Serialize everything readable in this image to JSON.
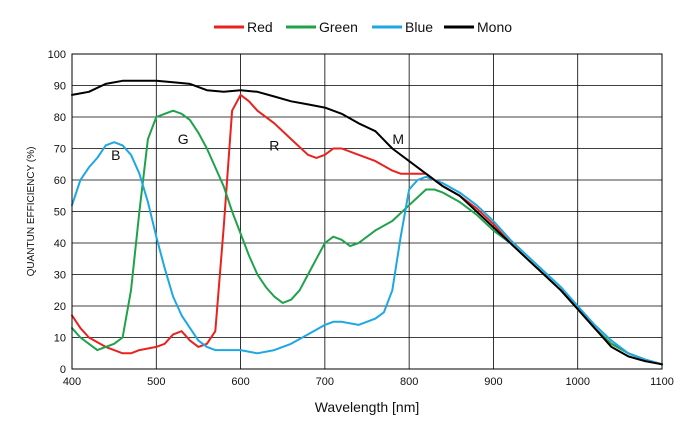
{
  "chart_data": {
    "type": "line",
    "xlabel": "Wavelength [nm]",
    "ylabel": "QUANTUN EFFICIENCY (%)",
    "xlim": [
      400,
      1100
    ],
    "ylim": [
      0,
      100
    ],
    "xticks": [
      400,
      500,
      600,
      700,
      800,
      900,
      1000,
      1100
    ],
    "yticks": [
      0,
      10,
      20,
      30,
      40,
      50,
      60,
      70,
      80,
      90,
      100
    ],
    "grid": true,
    "legend_position": "top-center",
    "series": [
      {
        "name": "Red",
        "color": "#e8231f",
        "points": [
          [
            400,
            17
          ],
          [
            410,
            13
          ],
          [
            420,
            10
          ],
          [
            440,
            7
          ],
          [
            460,
            5
          ],
          [
            470,
            5
          ],
          [
            480,
            6
          ],
          [
            500,
            7
          ],
          [
            510,
            8
          ],
          [
            520,
            11
          ],
          [
            530,
            12
          ],
          [
            540,
            9
          ],
          [
            550,
            7
          ],
          [
            560,
            8
          ],
          [
            570,
            12
          ],
          [
            580,
            45
          ],
          [
            590,
            82
          ],
          [
            600,
            87
          ],
          [
            610,
            85
          ],
          [
            620,
            82
          ],
          [
            640,
            78
          ],
          [
            660,
            73
          ],
          [
            680,
            68
          ],
          [
            690,
            67
          ],
          [
            700,
            68
          ],
          [
            710,
            70
          ],
          [
            720,
            70
          ],
          [
            740,
            68
          ],
          [
            760,
            66
          ],
          [
            780,
            63
          ],
          [
            790,
            62
          ],
          [
            800,
            62
          ],
          [
            820,
            62
          ],
          [
            840,
            58
          ],
          [
            860,
            55
          ],
          [
            880,
            51
          ],
          [
            900,
            46
          ],
          [
            920,
            40
          ],
          [
            940,
            35
          ],
          [
            960,
            30
          ],
          [
            980,
            25
          ],
          [
            1000,
            19
          ],
          [
            1020,
            13
          ],
          [
            1040,
            8
          ],
          [
            1060,
            5
          ],
          [
            1080,
            3
          ],
          [
            1100,
            1.5
          ]
        ]
      },
      {
        "name": "Green",
        "color": "#1fa24a",
        "points": [
          [
            400,
            13
          ],
          [
            410,
            10
          ],
          [
            420,
            8
          ],
          [
            430,
            6
          ],
          [
            440,
            7
          ],
          [
            450,
            8
          ],
          [
            460,
            10
          ],
          [
            470,
            25
          ],
          [
            480,
            50
          ],
          [
            490,
            73
          ],
          [
            500,
            80
          ],
          [
            510,
            81
          ],
          [
            520,
            82
          ],
          [
            530,
            81
          ],
          [
            540,
            79
          ],
          [
            550,
            75
          ],
          [
            560,
            70
          ],
          [
            570,
            64
          ],
          [
            580,
            58
          ],
          [
            590,
            50
          ],
          [
            600,
            43
          ],
          [
            610,
            36
          ],
          [
            620,
            30
          ],
          [
            630,
            26
          ],
          [
            640,
            23
          ],
          [
            650,
            21
          ],
          [
            660,
            22
          ],
          [
            670,
            25
          ],
          [
            680,
            30
          ],
          [
            690,
            35
          ],
          [
            700,
            40
          ],
          [
            710,
            42
          ],
          [
            720,
            41
          ],
          [
            730,
            39
          ],
          [
            740,
            40
          ],
          [
            760,
            44
          ],
          [
            780,
            47
          ],
          [
            800,
            52
          ],
          [
            820,
            57
          ],
          [
            830,
            57
          ],
          [
            840,
            56
          ],
          [
            860,
            53
          ],
          [
            880,
            49
          ],
          [
            900,
            44
          ],
          [
            920,
            40
          ],
          [
            940,
            35
          ],
          [
            960,
            30
          ],
          [
            980,
            25
          ],
          [
            1000,
            19
          ],
          [
            1020,
            13
          ],
          [
            1040,
            8
          ],
          [
            1060,
            5
          ],
          [
            1080,
            3
          ],
          [
            1100,
            1.5
          ]
        ]
      },
      {
        "name": "Blue",
        "color": "#1ea7e1",
        "points": [
          [
            400,
            52
          ],
          [
            410,
            60
          ],
          [
            420,
            64
          ],
          [
            430,
            67
          ],
          [
            440,
            71
          ],
          [
            450,
            72
          ],
          [
            460,
            71
          ],
          [
            470,
            68
          ],
          [
            480,
            62
          ],
          [
            490,
            53
          ],
          [
            500,
            42
          ],
          [
            510,
            32
          ],
          [
            520,
            23
          ],
          [
            530,
            17
          ],
          [
            540,
            13
          ],
          [
            550,
            9
          ],
          [
            560,
            7
          ],
          [
            570,
            6
          ],
          [
            580,
            6
          ],
          [
            600,
            6
          ],
          [
            620,
            5
          ],
          [
            640,
            6
          ],
          [
            660,
            8
          ],
          [
            680,
            11
          ],
          [
            700,
            14
          ],
          [
            710,
            15
          ],
          [
            720,
            15
          ],
          [
            740,
            14
          ],
          [
            760,
            16
          ],
          [
            770,
            18
          ],
          [
            780,
            25
          ],
          [
            790,
            42
          ],
          [
            800,
            57
          ],
          [
            810,
            60
          ],
          [
            820,
            61
          ],
          [
            840,
            59
          ],
          [
            860,
            56
          ],
          [
            880,
            52
          ],
          [
            900,
            47
          ],
          [
            920,
            41
          ],
          [
            940,
            36
          ],
          [
            960,
            31
          ],
          [
            980,
            26
          ],
          [
            1000,
            20
          ],
          [
            1020,
            14
          ],
          [
            1040,
            9
          ],
          [
            1060,
            5
          ],
          [
            1080,
            3
          ],
          [
            1100,
            1.5
          ]
        ]
      },
      {
        "name": "Mono",
        "color": "#000000",
        "points": [
          [
            400,
            87
          ],
          [
            410,
            87.5
          ],
          [
            420,
            88
          ],
          [
            440,
            90.5
          ],
          [
            460,
            91.5
          ],
          [
            480,
            91.5
          ],
          [
            500,
            91.5
          ],
          [
            520,
            91
          ],
          [
            540,
            90.5
          ],
          [
            560,
            88.5
          ],
          [
            580,
            88
          ],
          [
            600,
            88.5
          ],
          [
            620,
            88
          ],
          [
            640,
            86.5
          ],
          [
            660,
            85
          ],
          [
            680,
            84
          ],
          [
            700,
            83
          ],
          [
            720,
            81
          ],
          [
            740,
            78
          ],
          [
            760,
            75.5
          ],
          [
            780,
            70
          ],
          [
            800,
            66
          ],
          [
            820,
            62
          ],
          [
            840,
            58
          ],
          [
            860,
            55
          ],
          [
            880,
            50
          ],
          [
            900,
            45
          ],
          [
            920,
            40
          ],
          [
            940,
            35
          ],
          [
            960,
            30
          ],
          [
            980,
            25
          ],
          [
            1000,
            19
          ],
          [
            1020,
            13
          ],
          [
            1040,
            7
          ],
          [
            1060,
            4
          ],
          [
            1080,
            2.5
          ],
          [
            1100,
            1.5
          ]
        ]
      }
    ],
    "annotations": [
      {
        "text": "B",
        "x": 452,
        "y": 68
      },
      {
        "text": "G",
        "x": 532,
        "y": 73
      },
      {
        "text": "R",
        "x": 640,
        "y": 71
      },
      {
        "text": "M",
        "x": 787,
        "y": 73
      }
    ]
  }
}
